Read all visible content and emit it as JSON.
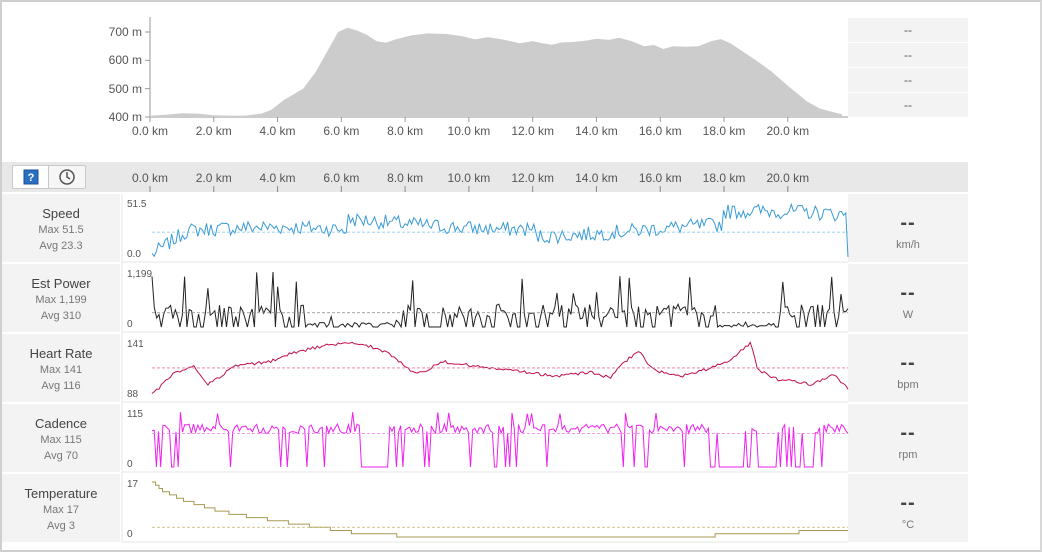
{
  "elevation": {
    "y_ticks": [
      "700 m",
      "600 m",
      "500 m",
      "400 m"
    ],
    "x_ticks": [
      "0.0 km",
      "2.0 km",
      "4.0 km",
      "6.0 km",
      "8.0 km",
      "10.0 km",
      "12.0 km",
      "14.0 km",
      "16.0 km",
      "18.0 km",
      "20.0 km"
    ],
    "panel_values": [
      "--",
      "--",
      "--",
      "--"
    ]
  },
  "toolbar": {
    "distance_icon": "help-distance-icon",
    "time_icon": "clock-icon",
    "x_ticks": [
      "0.0 km",
      "2.0 km",
      "4.0 km",
      "6.0 km",
      "8.0 km",
      "10.0 km",
      "12.0 km",
      "14.0 km",
      "16.0 km",
      "18.0 km",
      "20.0 km"
    ]
  },
  "metrics": [
    {
      "name": "Speed",
      "max": "Max 51.5",
      "avg": "Avg 23.3",
      "top": "51.5",
      "bottom": "0.0",
      "value": "--",
      "unit": "km/h",
      "color": "#3a9bd6"
    },
    {
      "name": "Est Power",
      "max": "Max 1,199",
      "avg": "Avg 310",
      "top": "1,199",
      "bottom": "0",
      "value": "--",
      "unit": "W",
      "color": "#222222"
    },
    {
      "name": "Heart Rate",
      "max": "Max 141",
      "avg": "Avg 116",
      "top": "141",
      "bottom": "88",
      "value": "--",
      "unit": "bpm",
      "color": "#c0104a"
    },
    {
      "name": "Cadence",
      "max": "Max 115",
      "avg": "Avg 70",
      "top": "115",
      "bottom": "0",
      "value": "--",
      "unit": "rpm",
      "color": "#ee22ee"
    },
    {
      "name": "Temperature",
      "max": "Max 17",
      "avg": "Avg 3",
      "top": "17",
      "bottom": "0",
      "value": "--",
      "unit": "°C",
      "color": "#a89a50"
    }
  ]
}
